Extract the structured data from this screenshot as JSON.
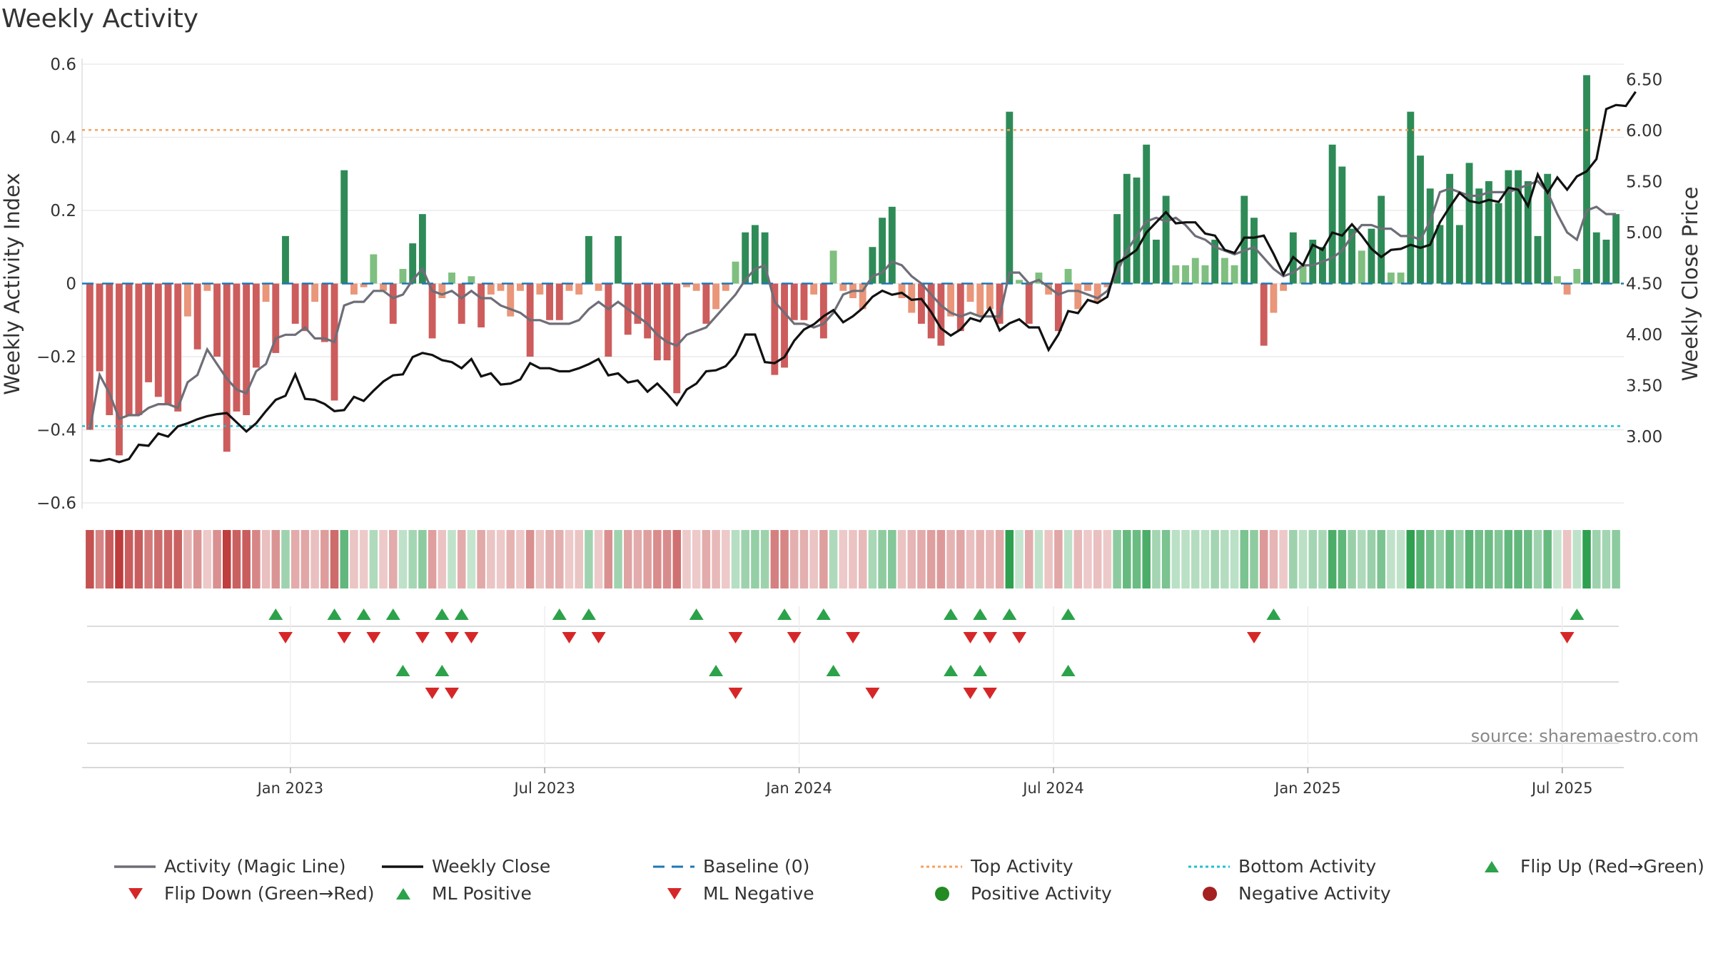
{
  "title": "Weekly Activity",
  "source": "source: sharemaestro.com",
  "chart_data": {
    "type": "bar",
    "title": "Weekly Activity",
    "ylabel": "Weekly Activity Index",
    "y2label": "Weekly Close Price",
    "ylim": [
      -0.6,
      0.6
    ],
    "y2lim": [
      2.35,
      6.65
    ],
    "yticks": [
      "0.6",
      "0.4",
      "0.2",
      "0",
      "−0.2",
      "−0.4",
      "−0.6"
    ],
    "y2ticks": [
      "6.50",
      "6.00",
      "5.50",
      "5.00",
      "4.50",
      "4.00",
      "3.50",
      "3.00"
    ],
    "xticks": [
      "Jan 2023",
      "Jul 2023",
      "Jan 2024",
      "Jul 2024",
      "Jan 2025",
      "Jul 2025"
    ],
    "top_activity": 0.42,
    "bottom_activity": -0.39,
    "activity": [
      -0.4,
      -0.24,
      -0.36,
      -0.47,
      -0.36,
      -0.36,
      -0.27,
      -0.31,
      -0.33,
      -0.35,
      -0.09,
      -0.18,
      -0.02,
      -0.2,
      -0.46,
      -0.35,
      -0.36,
      -0.23,
      -0.05,
      -0.19,
      0.13,
      -0.11,
      -0.13,
      -0.05,
      -0.16,
      -0.32,
      0.31,
      -0.03,
      -0.01,
      0.08,
      -0.02,
      -0.11,
      0.04,
      0.11,
      0.19,
      -0.15,
      -0.04,
      0.03,
      -0.11,
      0.02,
      -0.12,
      -0.03,
      -0.02,
      -0.09,
      -0.02,
      -0.2,
      -0.03,
      -0.1,
      -0.1,
      -0.02,
      -0.03,
      0.13,
      -0.02,
      -0.2,
      0.13,
      -0.14,
      -0.11,
      -0.15,
      -0.21,
      -0.21,
      -0.3,
      -0.01,
      -0.02,
      -0.11,
      -0.07,
      -0.02,
      0.06,
      0.14,
      0.16,
      0.14,
      -0.25,
      -0.23,
      -0.1,
      -0.1,
      -0.03,
      -0.15,
      0.09,
      -0.02,
      -0.04,
      -0.07,
      0.1,
      0.18,
      0.21,
      -0.04,
      -0.08,
      -0.11,
      -0.15,
      -0.17,
      -0.09,
      -0.13,
      -0.05,
      -0.09,
      -0.07,
      -0.11,
      0.47,
      0.01,
      -0.11,
      0.03,
      -0.03,
      -0.13,
      0.04,
      -0.07,
      -0.02,
      -0.05,
      -0.01,
      0.19,
      0.3,
      0.29,
      0.38,
      0.12,
      0.24,
      0.05,
      0.05,
      0.07,
      0.05,
      0.12,
      0.07,
      0.05,
      0.24,
      0.18,
      -0.17,
      -0.08,
      -0.02,
      0.14,
      0.05,
      0.12,
      0.1,
      0.38,
      0.32,
      0.15,
      0.09,
      0.15,
      0.24,
      0.03,
      0.03,
      0.47,
      0.35,
      0.26,
      0.16,
      0.3,
      0.16,
      0.33,
      0.26,
      0.28,
      0.22,
      0.31,
      0.31,
      0.28,
      0.13,
      0.3,
      0.02,
      -0.03,
      0.04,
      0.57,
      0.14,
      0.12,
      0.19
    ],
    "magic_line": [
      -0.4,
      -0.25,
      -0.3,
      -0.37,
      -0.36,
      -0.36,
      -0.34,
      -0.33,
      -0.33,
      -0.34,
      -0.27,
      -0.25,
      -0.18,
      -0.22,
      -0.26,
      -0.29,
      -0.3,
      -0.24,
      -0.22,
      -0.15,
      -0.14,
      -0.14,
      -0.12,
      -0.15,
      -0.15,
      -0.16,
      -0.06,
      -0.05,
      -0.05,
      -0.02,
      -0.02,
      -0.04,
      -0.03,
      0.01,
      0.04,
      -0.02,
      -0.03,
      -0.02,
      -0.04,
      -0.02,
      -0.04,
      -0.04,
      -0.06,
      -0.07,
      -0.08,
      -0.1,
      -0.1,
      -0.11,
      -0.11,
      -0.11,
      -0.1,
      -0.07,
      -0.05,
      -0.07,
      -0.05,
      -0.07,
      -0.09,
      -0.11,
      -0.14,
      -0.16,
      -0.17,
      -0.14,
      -0.13,
      -0.12,
      -0.09,
      -0.06,
      -0.03,
      0.01,
      0.04,
      0.05,
      -0.05,
      -0.08,
      -0.11,
      -0.11,
      -0.12,
      -0.11,
      -0.08,
      -0.03,
      -0.02,
      -0.02,
      0.02,
      0.03,
      0.06,
      0.05,
      0.02,
      0.0,
      -0.03,
      -0.06,
      -0.08,
      -0.09,
      -0.08,
      -0.09,
      -0.09,
      -0.09,
      0.03,
      0.03,
      0.0,
      0.01,
      -0.01,
      -0.03,
      -0.02,
      -0.02,
      -0.03,
      -0.04,
      -0.02,
      0.03,
      0.09,
      0.13,
      0.17,
      0.18,
      0.17,
      0.18,
      0.16,
      0.13,
      0.12,
      0.1,
      0.09,
      0.08,
      0.09,
      0.1,
      0.07,
      0.04,
      0.02,
      0.03,
      0.05,
      0.05,
      0.06,
      0.07,
      0.09,
      0.13,
      0.16,
      0.16,
      0.15,
      0.15,
      0.13,
      0.13,
      0.12,
      0.17,
      0.25,
      0.26,
      0.25,
      0.24,
      0.24,
      0.25,
      0.25,
      0.25,
      0.26,
      0.27,
      0.28,
      0.25,
      0.19,
      0.14,
      0.12,
      0.2,
      0.21,
      0.19,
      0.19
    ],
    "weekly_close": [
      2.77,
      2.76,
      2.78,
      2.75,
      2.78,
      2.92,
      2.91,
      3.03,
      3.0,
      3.1,
      3.13,
      3.17,
      3.2,
      3.22,
      3.23,
      3.14,
      3.05,
      3.13,
      3.25,
      3.36,
      3.4,
      3.61,
      3.37,
      3.36,
      3.32,
      3.25,
      3.26,
      3.39,
      3.35,
      3.45,
      3.54,
      3.6,
      3.61,
      3.78,
      3.82,
      3.8,
      3.75,
      3.73,
      3.67,
      3.76,
      3.59,
      3.62,
      3.51,
      3.52,
      3.56,
      3.72,
      3.67,
      3.67,
      3.64,
      3.64,
      3.67,
      3.71,
      3.76,
      3.6,
      3.62,
      3.53,
      3.55,
      3.44,
      3.52,
      3.42,
      3.31,
      3.46,
      3.52,
      3.64,
      3.65,
      3.69,
      3.8,
      4.0,
      4.0,
      3.73,
      3.72,
      3.78,
      3.94,
      4.05,
      4.1,
      4.18,
      4.24,
      4.12,
      4.18,
      4.26,
      4.37,
      4.43,
      4.39,
      4.41,
      4.34,
      4.35,
      4.22,
      4.06,
      3.99,
      4.05,
      4.16,
      4.13,
      4.26,
      4.04,
      4.11,
      4.15,
      4.07,
      4.07,
      3.85,
      4.0,
      4.23,
      4.21,
      4.34,
      4.31,
      4.37,
      4.7,
      4.76,
      4.83,
      5.0,
      5.1,
      5.2,
      5.09,
      5.1,
      5.1,
      4.99,
      4.97,
      4.83,
      4.8,
      4.95,
      4.95,
      4.97,
      4.79,
      4.59,
      4.76,
      4.68,
      4.88,
      4.83,
      5.0,
      4.97,
      5.08,
      4.97,
      4.84,
      4.76,
      4.83,
      4.84,
      4.88,
      4.85,
      4.88,
      5.1,
      5.25,
      5.39,
      5.31,
      5.29,
      5.32,
      5.3,
      5.44,
      5.42,
      5.26,
      5.57,
      5.39,
      5.54,
      5.42,
      5.55,
      5.6,
      5.72,
      6.21,
      6.25,
      6.24,
      6.38
    ],
    "flip_up": [
      19,
      25,
      28,
      31,
      36,
      38,
      48,
      51,
      62,
      71,
      75,
      88,
      91,
      94,
      100,
      121,
      152
    ],
    "flip_down": [
      20,
      26,
      29,
      34,
      37,
      39,
      49,
      52,
      66,
      72,
      78,
      90,
      92,
      95,
      119,
      151
    ],
    "ml_positive": [
      32,
      36,
      64,
      76,
      88,
      91,
      100
    ],
    "ml_negative": [
      35,
      37,
      66,
      80,
      90,
      92
    ]
  },
  "legend": [
    {
      "label": "Activity (Magic Line)",
      "icon": "magic-line"
    },
    {
      "label": "Weekly Close",
      "icon": "close-line"
    },
    {
      "label": "Baseline (0)",
      "icon": "baseline-dash"
    },
    {
      "label": "Top Activity",
      "icon": "top-dotted"
    },
    {
      "label": "Bottom Activity",
      "icon": "bottom-dotted"
    },
    {
      "label": "Flip Up (Red→Green)",
      "icon": "triangle-up-icon"
    },
    {
      "label": "Flip Down (Green→Red)",
      "icon": "triangle-down-icon"
    },
    {
      "label": "ML Positive",
      "icon": "triangle-up-icon"
    },
    {
      "label": "ML Negative",
      "icon": "triangle-down-icon"
    },
    {
      "label": "Positive Activity",
      "icon": "green-dot-icon"
    },
    {
      "label": "Negative Activity",
      "icon": "red-dot-icon"
    }
  ],
  "colors": {
    "green_dark": "#2e8b57",
    "green_light": "#7fbf7f",
    "red_dark": "#cd5c5c",
    "red_light": "#e9967a",
    "magic": "#6e6e78",
    "close": "#111111",
    "baseline": "#1f77b4",
    "top": "#f4a261",
    "bottom": "#20c0d0",
    "flip_green": "#2ca24a",
    "flip_red": "#d62728"
  }
}
